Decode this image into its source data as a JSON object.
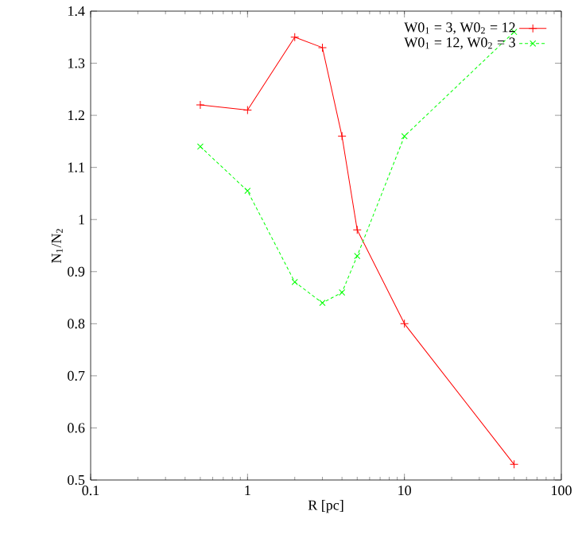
{
  "chart_data": {
    "type": "line",
    "xlabel": "R [pc]",
    "ylabel": "N$_{1}$/N$_{2}$",
    "log": "x",
    "xlim": [
      0.1,
      100
    ],
    "xticks": [
      0.1,
      1,
      10,
      100
    ],
    "ylim": [
      0.5,
      1.4
    ],
    "yticks": [
      0.5,
      0.6,
      0.7,
      0.8,
      0.9,
      1,
      1.1,
      1.2,
      1.3,
      1.4
    ],
    "x": [
      0.5,
      1,
      2,
      3,
      4,
      5,
      10,
      50
    ],
    "legend": "top right",
    "grid": false,
    "series": [
      {
        "name": "W0$_{1}$ = 3, W0$_{2}$ = 12",
        "color": "#ff0000",
        "marker": "plus",
        "line_style": "solid",
        "values": [
          1.22,
          1.21,
          1.35,
          1.33,
          1.16,
          0.98,
          0.8,
          0.53
        ]
      },
      {
        "name": "W0$_{1}$ = 12, W0$_{2}$ = 3",
        "color": "#00ff00",
        "marker": "cross",
        "line_style": "dashed",
        "values": [
          1.14,
          1.055,
          0.88,
          0.84,
          0.86,
          0.93,
          1.16,
          1.36
        ]
      }
    ]
  }
}
